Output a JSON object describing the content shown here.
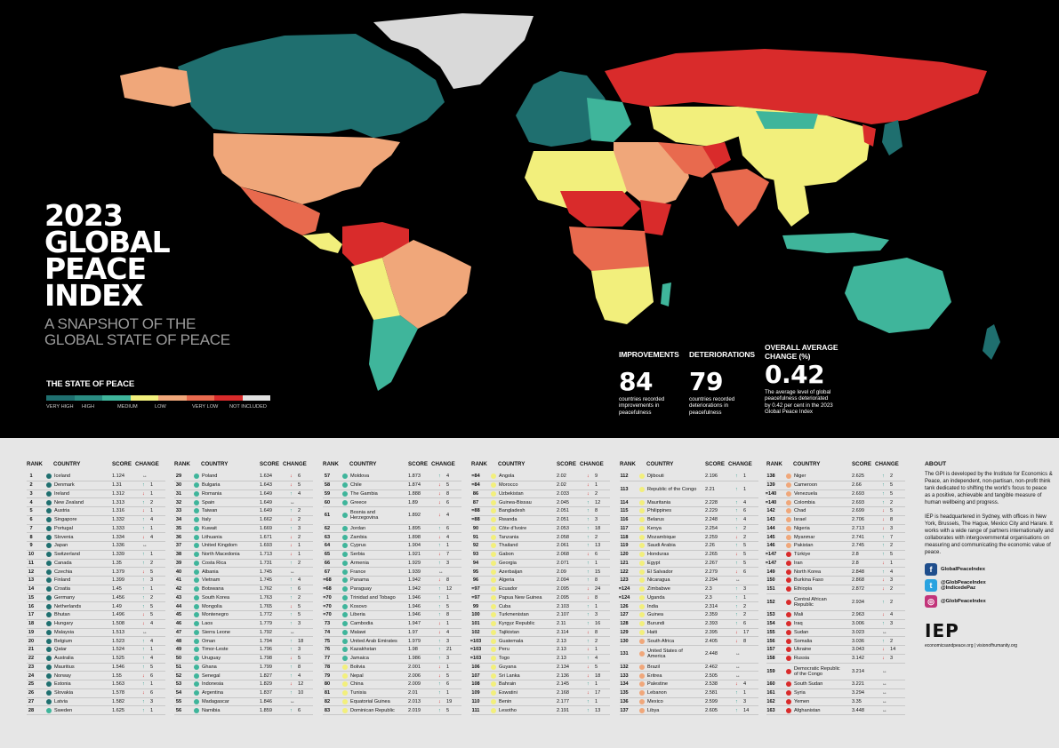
{
  "title": {
    "lines": [
      "2023",
      "GLOBAL",
      "PEACE",
      "INDEX"
    ],
    "subtitle": [
      "A SNAPSHOT OF THE",
      "GLOBAL STATE OF PEACE"
    ]
  },
  "legend": {
    "title": "THE STATE OF PEACE",
    "colors": [
      "#1f6f6f",
      "#2a8c82",
      "#3fb59b",
      "#f2ef7c",
      "#f0a77a",
      "#e86a4e",
      "#d92b2b",
      "#e0e0e0"
    ],
    "labels": [
      "VERY HIGH",
      "HIGH",
      "MEDIUM",
      "LOW",
      "VERY LOW",
      "NOT INCLUDED"
    ]
  },
  "stats": [
    {
      "title": [
        "IMPROVEMENTS"
      ],
      "value": "84",
      "desc": [
        "countries recorded",
        "improvements in",
        "peacefulness"
      ]
    },
    {
      "title": [
        "DETERIORATIONS"
      ],
      "value": "79",
      "desc": [
        "countries recorded",
        "deteriorations in",
        "peacefulness"
      ]
    },
    {
      "title": [
        "OVERALL AVERAGE",
        "CHANGE (%)"
      ],
      "value": "0.42",
      "desc": [
        "The average level of global",
        "peacefulness deteriorated",
        "by 0.42 per cent in the 2023",
        "Global Peace Index"
      ]
    }
  ],
  "headers": {
    "rank": "RANK",
    "country": "COUNTRY",
    "score": "SCORE",
    "change": "CHANGE"
  },
  "columns": [
    [
      [
        "1",
        "Iceland",
        "1.124",
        "=",
        ""
      ],
      [
        "2",
        "Denmark",
        "1.31",
        "up",
        "1"
      ],
      [
        "3",
        "Ireland",
        "1.312",
        "down",
        "1"
      ],
      [
        "4",
        "New Zealand",
        "1.313",
        "up",
        "2"
      ],
      [
        "5",
        "Austria",
        "1.316",
        "down",
        "1"
      ],
      [
        "6",
        "Singapore",
        "1.332",
        "up",
        "4"
      ],
      [
        "7",
        "Portugal",
        "1.333",
        "up",
        "1"
      ],
      [
        "8",
        "Slovenia",
        "1.334",
        "down",
        "4"
      ],
      [
        "9",
        "Japan",
        "1.336",
        "=",
        ""
      ],
      [
        "10",
        "Switzerland",
        "1.339",
        "up",
        "1"
      ],
      [
        "11",
        "Canada",
        "1.35",
        "up",
        "2"
      ],
      [
        "12",
        "Czechia",
        "1.379",
        "down",
        "5"
      ],
      [
        "13",
        "Finland",
        "1.399",
        "up",
        "3"
      ],
      [
        "14",
        "Croatia",
        "1.45",
        "up",
        "1"
      ],
      [
        "15",
        "Germany",
        "1.456",
        "up",
        "2"
      ],
      [
        "16",
        "Netherlands",
        "1.49",
        "up",
        "5"
      ],
      [
        "17",
        "Bhutan",
        "1.496",
        "down",
        "5"
      ],
      [
        "18",
        "Hungary",
        "1.508",
        "down",
        "4"
      ],
      [
        "19",
        "Malaysia",
        "1.513",
        "=",
        ""
      ],
      [
        "20",
        "Belgium",
        "1.523",
        "up",
        "4"
      ],
      [
        "21",
        "Qatar",
        "1.524",
        "up",
        "1"
      ],
      [
        "22",
        "Australia",
        "1.525",
        "up",
        "4"
      ],
      [
        "23",
        "Mauritius",
        "1.546",
        "up",
        "5"
      ],
      [
        "24",
        "Norway",
        "1.55",
        "down",
        "6"
      ],
      [
        "25",
        "Estonia",
        "1.563",
        "up",
        "1"
      ],
      [
        "26",
        "Slovakia",
        "1.578",
        "down",
        "6"
      ],
      [
        "27",
        "Latvia",
        "1.582",
        "up",
        "3"
      ],
      [
        "28",
        "Sweden",
        "1.625",
        "up",
        "1"
      ]
    ],
    [
      [
        "29",
        "Poland",
        "1.634",
        "down",
        "6"
      ],
      [
        "30",
        "Bulgaria",
        "1.643",
        "down",
        "5"
      ],
      [
        "31",
        "Romania",
        "1.649",
        "up",
        "4"
      ],
      [
        "32",
        "Spain",
        "1.649",
        "=",
        ""
      ],
      [
        "33",
        "Taiwan",
        "1.649",
        "up",
        "2"
      ],
      [
        "34",
        "Italy",
        "1.662",
        "down",
        "2"
      ],
      [
        "35",
        "Kuwait",
        "1.669",
        "up",
        "3"
      ],
      [
        "36",
        "Lithuania",
        "1.671",
        "down",
        "2"
      ],
      [
        "37",
        "United Kingdom",
        "1.693",
        "down",
        "1"
      ],
      [
        "38",
        "North Macedonia",
        "1.713",
        "down",
        "1"
      ],
      [
        "39",
        "Costa Rica",
        "1.731",
        "up",
        "2"
      ],
      [
        "40",
        "Albania",
        "1.745",
        "=",
        ""
      ],
      [
        "41",
        "Vietnam",
        "1.745",
        "up",
        "4"
      ],
      [
        "42",
        "Botswana",
        "1.762",
        "up",
        "6"
      ],
      [
        "43",
        "South Korea",
        "1.763",
        "up",
        "2"
      ],
      [
        "44",
        "Mongolia",
        "1.765",
        "down",
        "5"
      ],
      [
        "45",
        "Montenegro",
        "1.772",
        "up",
        "5"
      ],
      [
        "46",
        "Laos",
        "1.779",
        "up",
        "3"
      ],
      [
        "47",
        "Sierra Leone",
        "1.792",
        "=",
        ""
      ],
      [
        "48",
        "Oman",
        "1.794",
        "up",
        "18"
      ],
      [
        "49",
        "Timor-Leste",
        "1.796",
        "up",
        "3"
      ],
      [
        "50",
        "Uruguay",
        "1.798",
        "down",
        "5"
      ],
      [
        "51",
        "Ghana",
        "1.799",
        "up",
        "8"
      ],
      [
        "52",
        "Senegal",
        "1.827",
        "up",
        "4"
      ],
      [
        "53",
        "Indonesia",
        "1.829",
        "down",
        "12"
      ],
      [
        "54",
        "Argentina",
        "1.837",
        "up",
        "10"
      ],
      [
        "55",
        "Madagascar",
        "1.846",
        "=",
        ""
      ],
      [
        "56",
        "Namibia",
        "1.859",
        "up",
        "6"
      ]
    ],
    [
      [
        "57",
        "Moldova",
        "1.873",
        "up",
        "4"
      ],
      [
        "58",
        "Chile",
        "1.874",
        "down",
        "5"
      ],
      [
        "59",
        "The Gambia",
        "1.888",
        "down",
        "8"
      ],
      [
        "60",
        "Greece",
        "1.89",
        "down",
        "6"
      ],
      [
        "61",
        "Bosnia and Herzegovina",
        "1.892",
        "down",
        "4"
      ],
      [
        "62",
        "Jordan",
        "1.895",
        "up",
        "6"
      ],
      [
        "63",
        "Zambia",
        "1.898",
        "down",
        "4"
      ],
      [
        "64",
        "Cyprus",
        "1.904",
        "up",
        "1"
      ],
      [
        "65",
        "Serbia",
        "1.921",
        "down",
        "7"
      ],
      [
        "66",
        "Armenia",
        "1.929",
        "up",
        "3"
      ],
      [
        "67",
        "France",
        "1.939",
        "=",
        ""
      ],
      [
        "=68",
        "Panama",
        "1.942",
        "down",
        "8"
      ],
      [
        "=68",
        "Paraguay",
        "1.942",
        "up",
        "12"
      ],
      [
        "=70",
        "Trinidad and Tobago",
        "1.946",
        "up",
        "1"
      ],
      [
        "=70",
        "Kosovo",
        "1.946",
        "up",
        "5"
      ],
      [
        "=70",
        "Liberia",
        "1.946",
        "up",
        "8"
      ],
      [
        "73",
        "Cambodia",
        "1.947",
        "down",
        "1"
      ],
      [
        "74",
        "Malawi",
        "1.97",
        "down",
        "4"
      ],
      [
        "75",
        "United Arab Emirates",
        "1.979",
        "up",
        "3"
      ],
      [
        "76",
        "Kazakhstan",
        "1.98",
        "up",
        "21"
      ],
      [
        "77",
        "Jamaica",
        "1.986",
        "up",
        "3"
      ],
      [
        "78",
        "Bolivia",
        "2.001",
        "down",
        "1"
      ],
      [
        "79",
        "Nepal",
        "2.006",
        "down",
        "5"
      ],
      [
        "80",
        "China",
        "2.009",
        "up",
        "6"
      ],
      [
        "81",
        "Tunisia",
        "2.01",
        "up",
        "1"
      ],
      [
        "82",
        "Equatorial Guinea",
        "2.013",
        "down",
        "19"
      ],
      [
        "83",
        "Dominican Republic",
        "2.019",
        "up",
        "5"
      ]
    ],
    [
      [
        "=84",
        "Angola",
        "2.02",
        "down",
        "9"
      ],
      [
        "=84",
        "Morocco",
        "2.02",
        "down",
        "1"
      ],
      [
        "86",
        "Uzbekistan",
        "2.033",
        "down",
        "2"
      ],
      [
        "87",
        "Guinea-Bissau",
        "2.045",
        "up",
        "12"
      ],
      [
        "=88",
        "Bangladesh",
        "2.051",
        "up",
        "8"
      ],
      [
        "=88",
        "Rwanda",
        "2.051",
        "up",
        "3"
      ],
      [
        "90",
        "Côte d'Ivoire",
        "2.053",
        "up",
        "18"
      ],
      [
        "91",
        "Tanzania",
        "2.058",
        "up",
        "2"
      ],
      [
        "92",
        "Thailand",
        "2.061",
        "up",
        "13"
      ],
      [
        "93",
        "Gabon",
        "2.068",
        "down",
        "6"
      ],
      [
        "94",
        "Georgia",
        "2.071",
        "up",
        "1"
      ],
      [
        "95",
        "Azerbaijan",
        "2.09",
        "up",
        "15"
      ],
      [
        "96",
        "Algeria",
        "2.094",
        "up",
        "8"
      ],
      [
        "=97",
        "Ecuador",
        "2.095",
        "down",
        "24"
      ],
      [
        "=97",
        "Papua New Guinea",
        "2.095",
        "down",
        "8"
      ],
      [
        "99",
        "Cuba",
        "2.103",
        "up",
        "1"
      ],
      [
        "100",
        "Turkmenistan",
        "2.107",
        "up",
        "3"
      ],
      [
        "101",
        "Kyrgyz Republic",
        "2.11",
        "up",
        "16"
      ],
      [
        "102",
        "Tajikistan",
        "2.114",
        "down",
        "8"
      ],
      [
        "=103",
        "Guatemala",
        "2.13",
        "up",
        "2"
      ],
      [
        "=103",
        "Peru",
        "2.13",
        "down",
        "1"
      ],
      [
        "=103",
        "Togo",
        "2.13",
        "up",
        "4"
      ],
      [
        "106",
        "Guyana",
        "2.134",
        "down",
        "5"
      ],
      [
        "107",
        "Sri Lanka",
        "2.136",
        "down",
        "18"
      ],
      [
        "108",
        "Bahrain",
        "2.145",
        "up",
        "1"
      ],
      [
        "109",
        "Eswatini",
        "2.168",
        "down",
        "17"
      ],
      [
        "110",
        "Benin",
        "2.177",
        "up",
        "1"
      ],
      [
        "111",
        "Lesotho",
        "2.191",
        "up",
        "13"
      ]
    ],
    [
      [
        "112",
        "Djibouti",
        "2.196",
        "up",
        "1"
      ],
      [
        "113",
        "Republic of the Congo",
        "2.21",
        "up",
        "1"
      ],
      [
        "114",
        "Mauritania",
        "2.228",
        "up",
        "4"
      ],
      [
        "115",
        "Philippines",
        "2.229",
        "up",
        "6"
      ],
      [
        "116",
        "Belarus",
        "2.248",
        "up",
        "4"
      ],
      [
        "117",
        "Kenya",
        "2.254",
        "up",
        "2"
      ],
      [
        "118",
        "Mozambique",
        "2.259",
        "down",
        "2"
      ],
      [
        "119",
        "Saudi Arabia",
        "2.26",
        "up",
        "5"
      ],
      [
        "120",
        "Honduras",
        "2.265",
        "down",
        "5"
      ],
      [
        "121",
        "Egypt",
        "2.267",
        "up",
        "5"
      ],
      [
        "122",
        "El Salvador",
        "2.279",
        "down",
        "6"
      ],
      [
        "123",
        "Nicaragua",
        "2.294",
        "=",
        ""
      ],
      [
        "=124",
        "Zimbabwe",
        "2.3",
        "up",
        "3"
      ],
      [
        "=124",
        "Uganda",
        "2.3",
        "up",
        "1"
      ],
      [
        "126",
        "India",
        "2.314",
        "up",
        "2"
      ],
      [
        "127",
        "Guinea",
        "2.359",
        "up",
        "2"
      ],
      [
        "128",
        "Burundi",
        "2.393",
        "up",
        "6"
      ],
      [
        "129",
        "Haiti",
        "2.395",
        "down",
        "17"
      ],
      [
        "130",
        "South Africa",
        "2.405",
        "down",
        "8"
      ],
      [
        "131",
        "United States of America",
        "2.448",
        "=",
        ""
      ],
      [
        "132",
        "Brazil",
        "2.462",
        "=",
        ""
      ],
      [
        "133",
        "Eritrea",
        "2.505",
        "=",
        ""
      ],
      [
        "134",
        "Palestine",
        "2.538",
        "down",
        "4"
      ],
      [
        "135",
        "Lebanon",
        "2.581",
        "up",
        "1"
      ],
      [
        "136",
        "Mexico",
        "2.599",
        "up",
        "3"
      ],
      [
        "137",
        "Libya",
        "2.605",
        "up",
        "14"
      ]
    ],
    [
      [
        "138",
        "Niger",
        "2.625",
        "up",
        "2"
      ],
      [
        "139",
        "Cameroon",
        "2.66",
        "up",
        "5"
      ],
      [
        "=140",
        "Venezuela",
        "2.693",
        "up",
        "5"
      ],
      [
        "=140",
        "Colombia",
        "2.693",
        "up",
        "2"
      ],
      [
        "142",
        "Chad",
        "2.699",
        "down",
        "5"
      ],
      [
        "143",
        "Israel",
        "2.706",
        "down",
        "8"
      ],
      [
        "144",
        "Nigeria",
        "2.713",
        "down",
        "3"
      ],
      [
        "145",
        "Myanmar",
        "2.741",
        "up",
        "7"
      ],
      [
        "146",
        "Pakistan",
        "2.745",
        "up",
        "2"
      ],
      [
        "=147",
        "Türkiye",
        "2.8",
        "up",
        "5"
      ],
      [
        "=147",
        "Iran",
        "2.8",
        "down",
        "1"
      ],
      [
        "149",
        "North Korea",
        "2.848",
        "up",
        "4"
      ],
      [
        "150",
        "Burkina Faso",
        "2.868",
        "down",
        "3"
      ],
      [
        "151",
        "Ethiopia",
        "2.872",
        "down",
        "2"
      ],
      [
        "152",
        "Central African Republic",
        "2.934",
        "up",
        "2"
      ],
      [
        "153",
        "Mali",
        "2.963",
        "down",
        "4"
      ],
      [
        "154",
        "Iraq",
        "3.006",
        "up",
        "3"
      ],
      [
        "155",
        "Sudan",
        "3.023",
        "=",
        ""
      ],
      [
        "156",
        "Somalia",
        "3.036",
        "up",
        "2"
      ],
      [
        "157",
        "Ukraine",
        "3.043",
        "down",
        "14"
      ],
      [
        "158",
        "Russia",
        "3.142",
        "down",
        "3"
      ],
      [
        "159",
        "Democratic Republic of the Congo",
        "3.214",
        "=",
        ""
      ],
      [
        "160",
        "South Sudan",
        "3.221",
        "=",
        ""
      ],
      [
        "161",
        "Syria",
        "3.294",
        "=",
        ""
      ],
      [
        "162",
        "Yemen",
        "3.35",
        "=",
        ""
      ],
      [
        "163",
        "Afghanistan",
        "3.448",
        "=",
        ""
      ]
    ]
  ],
  "about": {
    "title": "ABOUT",
    "paragraphs": [
      "The GPI is developed by the Institute for Economics & Peace, an independent, non-partisan, non-profit think tank dedicated to shifting the world's focus to peace as a positive, achievable and tangible measure of human wellbeing and progress.",
      "IEP is headquartered in Sydney, with offices in New York, Brussels, The Hague, Mexico City and Harare. It works with a wide range of partners internationally and collaborates with intergovernmental organisations on measuring and communicating the economic value of peace."
    ],
    "facebook": "GlobalPeaceIndex",
    "twitter": [
      "@GlobPeaceIndex",
      "@IndicedePaz"
    ],
    "instagram": "@GlobPeaceIndex",
    "logo": "IEP",
    "links": "economicsandpeace.org  |  visionofhumanity.org"
  }
}
